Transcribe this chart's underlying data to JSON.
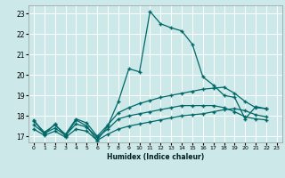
{
  "xlabel": "Humidex (Indice chaleur)",
  "xlim": [
    -0.5,
    23.5
  ],
  "ylim": [
    16.7,
    23.4
  ],
  "yticks": [
    17,
    18,
    19,
    20,
    21,
    22,
    23
  ],
  "xticks": [
    0,
    1,
    2,
    3,
    4,
    5,
    6,
    7,
    8,
    9,
    10,
    11,
    12,
    13,
    14,
    15,
    16,
    17,
    18,
    19,
    20,
    21,
    22,
    23
  ],
  "bg_color": "#cce8e8",
  "grid_color": "#ffffff",
  "line_color": "#006868",
  "line1_y": [
    17.8,
    17.1,
    17.6,
    17.0,
    17.8,
    17.5,
    16.8,
    17.5,
    18.7,
    20.3,
    20.15,
    23.1,
    22.5,
    22.3,
    22.15,
    21.5,
    19.9,
    19.5,
    19.0,
    18.9,
    17.85,
    18.45,
    18.35
  ],
  "line2_y": [
    17.75,
    17.2,
    17.55,
    17.1,
    17.85,
    17.65,
    17.0,
    17.55,
    18.15,
    18.4,
    18.6,
    18.75,
    18.9,
    19.0,
    19.1,
    19.2,
    19.3,
    19.35,
    19.4,
    19.1,
    18.7,
    18.4,
    18.35
  ],
  "line3_y": [
    17.55,
    17.15,
    17.4,
    17.05,
    17.6,
    17.45,
    16.95,
    17.35,
    17.85,
    18.0,
    18.1,
    18.2,
    18.3,
    18.4,
    18.5,
    18.5,
    18.5,
    18.5,
    18.4,
    18.2,
    17.95,
    17.85,
    17.8
  ],
  "line4_y": [
    17.35,
    17.05,
    17.25,
    16.95,
    17.35,
    17.25,
    16.8,
    17.1,
    17.35,
    17.5,
    17.6,
    17.7,
    17.8,
    17.9,
    18.0,
    18.05,
    18.1,
    18.2,
    18.3,
    18.35,
    18.25,
    18.05,
    17.95
  ]
}
